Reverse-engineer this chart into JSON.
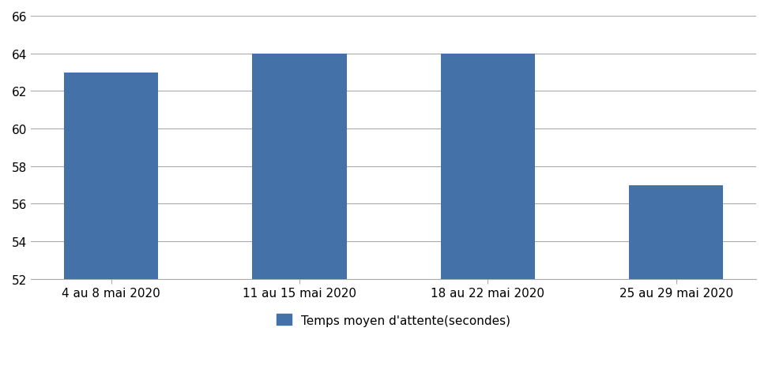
{
  "categories": [
    "4 au 8 mai 2020",
    "11 au 15 mai 2020",
    "18 au 22 mai 2020",
    "25 au 29 mai 2020"
  ],
  "values": [
    63,
    64,
    64,
    57
  ],
  "bar_color": "#4472a8",
  "ylim": [
    52,
    66
  ],
  "yticks": [
    52,
    54,
    56,
    58,
    60,
    62,
    64,
    66
  ],
  "legend_label": "Temps moyen d'attente(secondes)",
  "background_color": "#ffffff",
  "grid_color": "#aaaaaa",
  "bar_width": 0.5,
  "tick_fontsize": 11,
  "legend_fontsize": 11
}
